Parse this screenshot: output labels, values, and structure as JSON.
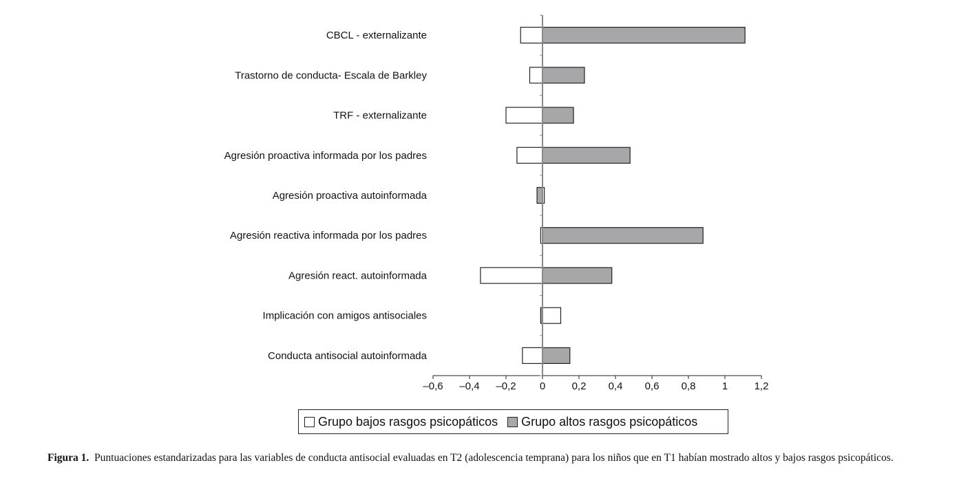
{
  "chart_data": {
    "type": "bar",
    "orientation": "horizontal",
    "title": "",
    "xlabel": "",
    "ylabel": "",
    "xlim": [
      -0.6,
      1.2
    ],
    "xticks": [
      -0.6,
      -0.4,
      -0.2,
      0,
      0.2,
      0.4,
      0.6,
      0.8,
      1,
      1.2
    ],
    "xtick_labels": [
      "–0,6",
      "–0,4",
      "–0,2",
      "0",
      "0,2",
      "0,4",
      "0,6",
      "0,8",
      "1",
      "1,2"
    ],
    "grid": false,
    "legend_position": "bottom",
    "categories": [
      "CBCL - externalizante",
      "Trastorno de conducta- Escala de Barkley",
      "TRF - externalizante",
      "Agresión proactiva informada por los padres",
      "Agresión proactiva autoinformada",
      "Agresión reactiva informada por los padres",
      "Agresión react. autoinformada",
      "Implicación con amigos antisociales",
      "Conducta antisocial autoinformada"
    ],
    "series": [
      {
        "name": "Grupo bajos rasgos psicopáticos",
        "color": "#ffffff",
        "values": [
          -0.12,
          -0.07,
          -0.2,
          -0.14,
          0.01,
          -0.01,
          -0.34,
          0.1,
          -0.11
        ]
      },
      {
        "name": "Grupo altos rasgos psicopáticos",
        "color": "#a7a7aa",
        "values": [
          1.11,
          0.23,
          0.17,
          0.48,
          -0.03,
          0.88,
          0.38,
          -0.01,
          0.15
        ]
      }
    ]
  },
  "caption": {
    "label": "Figura 1.",
    "text": "Puntuaciones estandarizadas para las variables de conducta antisocial evaluadas en T2 (adolescencia temprana) para los niños que en T1 habían mostrado altos y bajos rasgos psicopáticos."
  }
}
